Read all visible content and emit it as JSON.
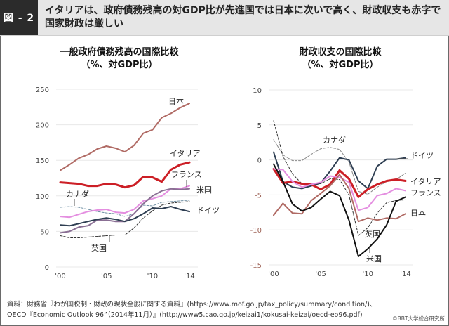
{
  "header": {
    "figure_label": "図 - 2",
    "headline": "イタリアは、政府債務残高の対GDP比が先進国では日本に次いで高く、財政収支も赤字で国家財政は厳しい"
  },
  "chart_data": [
    {
      "type": "line",
      "title": "一般政府債務残高の国際比較",
      "subtitle": "（%、対GDP比）",
      "xlabel": "",
      "ylabel": "",
      "x": [
        2000,
        2001,
        2002,
        2003,
        2004,
        2005,
        2006,
        2007,
        2008,
        2009,
        2010,
        2011,
        2012,
        2013,
        2014
      ],
      "xtick_labels": [
        "'00",
        "'05",
        "'10",
        "'14"
      ],
      "xticks": [
        2000,
        2005,
        2010,
        2014
      ],
      "ylim": [
        0,
        250
      ],
      "yticks": [
        0,
        50,
        100,
        150,
        200,
        250
      ],
      "ytick_labels": [
        "0",
        "50",
        "100",
        "150",
        "200",
        "250"
      ],
      "grid": true,
      "legend": "inline labels",
      "series": [
        {
          "name": "日本",
          "color": "#b06a64",
          "dash": false,
          "width": 2,
          "values": [
            136,
            144,
            153,
            158,
            166,
            170,
            167,
            162,
            171,
            188,
            193,
            210,
            216,
            224,
            230
          ]
        },
        {
          "name": "イタリア",
          "color": "#cc1f26",
          "dash": false,
          "width": 3,
          "values": [
            119,
            118,
            117,
            114,
            114,
            117,
            116,
            112,
            115,
            127,
            126,
            120,
            137,
            144,
            147
          ]
        },
        {
          "name": "フランス",
          "color": "#e48ee0",
          "dash": false,
          "width": 2,
          "values": [
            71,
            70,
            74,
            78,
            80,
            81,
            77,
            76,
            81,
            93,
            96,
            100,
            110,
            110,
            114
          ]
        },
        {
          "name": "米国",
          "color": "#8a6f94",
          "dash": false,
          "width": 2,
          "values": [
            48,
            50,
            56,
            58,
            66,
            66,
            64,
            64,
            75,
            89,
            100,
            107,
            110,
            109,
            110
          ]
        },
        {
          "name": "カナダ",
          "color": "#6f8fa3",
          "dash": true,
          "width": 1,
          "values": [
            84,
            85,
            84,
            81,
            78,
            76,
            75,
            71,
            75,
            87,
            86,
            91,
            92,
            93,
            94
          ]
        },
        {
          "name": "ドイツ",
          "color": "#2e3e52",
          "dash": false,
          "width": 2,
          "values": [
            59,
            58,
            61,
            64,
            67,
            69,
            67,
            64,
            68,
            75,
            83,
            82,
            85,
            81,
            78
          ]
        },
        {
          "name": "英国",
          "color": "#333333",
          "dash": true,
          "width": 1,
          "values": [
            44,
            41,
            41,
            42,
            43,
            44,
            45,
            45,
            55,
            69,
            79,
            87,
            90,
            91,
            92
          ]
        }
      ],
      "annotations": [
        "日本",
        "イタリア",
        "フランス",
        "米国",
        "ドイツ",
        "カナダ",
        "英国"
      ]
    },
    {
      "type": "line",
      "title": "財政収支の国際比較",
      "subtitle": "（%、対GDP比）",
      "xlabel": "",
      "ylabel": "",
      "x": [
        2000,
        2001,
        2002,
        2003,
        2004,
        2005,
        2006,
        2007,
        2008,
        2009,
        2010,
        2011,
        2012,
        2013,
        2014
      ],
      "xtick_labels": [
        "'00",
        "'05",
        "'10",
        "'14"
      ],
      "xticks": [
        2000,
        2005,
        2010,
        2014
      ],
      "ylim": [
        -15,
        10
      ],
      "yticks": [
        -15,
        -10,
        -5,
        0,
        5,
        10
      ],
      "ytick_labels": [
        "-15",
        "-10",
        "-5",
        "0",
        "5",
        "10"
      ],
      "negative_tick_color": "#a0665a",
      "grid": true,
      "legend": "inline labels",
      "series": [
        {
          "name": "カナダ",
          "color": "#888888",
          "dash": true,
          "width": 1,
          "values": [
            2.9,
            0.7,
            -0.1,
            -0.1,
            0.8,
            1.6,
            1.8,
            1.5,
            -0.3,
            -4.5,
            -4.9,
            -3.9,
            -3.1,
            -2.8,
            -1.9
          ]
        },
        {
          "name": "ドイツ",
          "color": "#2e3e52",
          "dash": false,
          "width": 2,
          "values": [
            1.1,
            -3.1,
            -3.9,
            -4.1,
            -3.7,
            -3.3,
            -1.6,
            0.3,
            0.0,
            -3.0,
            -4.1,
            -0.9,
            0.1,
            0.1,
            0.3
          ]
        },
        {
          "name": "イタリア",
          "color": "#cc1f26",
          "dash": false,
          "width": 3,
          "values": [
            -1.3,
            -3.3,
            -3.1,
            -3.4,
            -3.5,
            -4.2,
            -3.5,
            -1.5,
            -2.7,
            -5.3,
            -4.2,
            -3.5,
            -3.0,
            -2.8,
            -3.0
          ]
        },
        {
          "name": "フランス",
          "color": "#e48ee0",
          "dash": false,
          "width": 2,
          "values": [
            -1.3,
            -1.4,
            -3.1,
            -3.9,
            -3.5,
            -3.2,
            -2.3,
            -2.5,
            -3.2,
            -7.2,
            -6.8,
            -5.1,
            -4.8,
            -4.1,
            -4.4
          ]
        },
        {
          "name": "日本",
          "color": "#b06a64",
          "dash": false,
          "width": 2,
          "values": [
            -7.9,
            -6.2,
            -7.6,
            -7.7,
            -5.8,
            -4.8,
            -3.7,
            -2.1,
            -4.1,
            -8.8,
            -8.3,
            -8.6,
            -8.3,
            -8.4,
            -7.7
          ]
        },
        {
          "name": "英国",
          "color": "#333333",
          "dash": true,
          "width": 1,
          "values": [
            5.6,
            0.5,
            -2.0,
            -3.4,
            -3.4,
            -3.4,
            -2.7,
            -2.8,
            -5.0,
            -10.8,
            -9.7,
            -7.6,
            -6.1,
            -5.8,
            -5.7
          ]
        },
        {
          "name": "米国",
          "color": "#111111",
          "dash": false,
          "width": 2,
          "values": [
            -0.6,
            -3.1,
            -6.3,
            -7.3,
            -6.8,
            -5.6,
            -4.5,
            -5.1,
            -8.6,
            -13.8,
            -12.7,
            -11.3,
            -9.3,
            -5.9,
            -5.3
          ]
        }
      ],
      "annotations": [
        "カナダ",
        "ドイツ",
        "イタリア",
        "フランス",
        "日本",
        "英国",
        "米国"
      ]
    }
  ],
  "footer": {
    "source_line1": "資料：財務省『わが国税制・財政の現状全般に関する資料』(https://www.mof.go.jp/tax_policy/summary/condition/)、",
    "source_line2": "OECD『Economic Outlook 96”（2014年11月）』(http://www5.cao.go.jp/keizai1/kokusai-keizai/oecd-eo96.pdf)",
    "credit": "©BBT大学総合研究所"
  }
}
